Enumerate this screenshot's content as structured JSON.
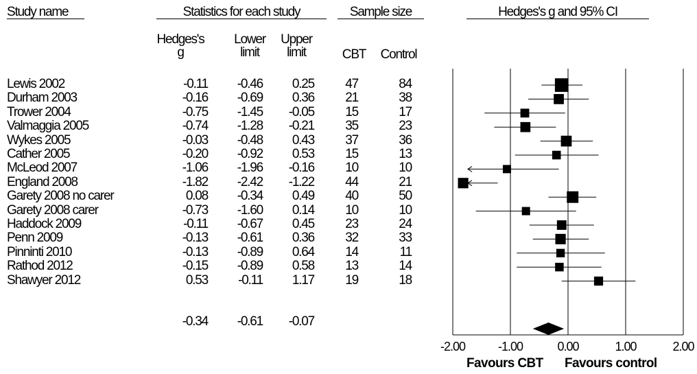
{
  "headers": {
    "study_name": "Study name",
    "stats_group": "Statistics for each study",
    "sample_group": "Sample size",
    "plot_group": "Hedges's g and 95% CI",
    "hedges_line1": "Hedges's",
    "hedges_line2": "g",
    "lower_line1": "Lower",
    "lower_line2": "limit",
    "upper_line1": "Upper",
    "upper_line2": "limit",
    "cbt": "CBT",
    "control": "Control"
  },
  "footer": {
    "favours_left": "Favours CBT",
    "favours_right": "Favours control"
  },
  "summary": {
    "g": "-0.34",
    "lower": "-0.61",
    "upper": "-0.07"
  },
  "chart_data": {
    "type": "forest",
    "xlim": [
      -2.0,
      2.0
    ],
    "ticks": [
      -2.0,
      -1.0,
      0.0,
      1.0,
      2.0
    ],
    "tick_labels": [
      "-2.00",
      "-1.00",
      "0.00",
      "1.00",
      "2.00"
    ],
    "studies": [
      {
        "name": "Lewis 2002",
        "g": "-0.11",
        "lower": "-0.46",
        "upper": "0.25",
        "cbt": "47",
        "control": "84"
      },
      {
        "name": "Durham 2003",
        "g": "-0.16",
        "lower": "-0.69",
        "upper": "0.36",
        "cbt": "21",
        "control": "38"
      },
      {
        "name": "Trower 2004",
        "g": "-0.75",
        "lower": "-1.45",
        "upper": "-0.05",
        "cbt": "15",
        "control": "17"
      },
      {
        "name": "Valmaggia 2005",
        "g": "-0.74",
        "lower": "-1.28",
        "upper": "-0.21",
        "cbt": "35",
        "control": "23"
      },
      {
        "name": "Wykes 2005",
        "g": "-0.03",
        "lower": "-0.48",
        "upper": "0.43",
        "cbt": "37",
        "control": "36"
      },
      {
        "name": "Cather 2005",
        "g": "-0.20",
        "lower": "-0.92",
        "upper": "0.53",
        "cbt": "15",
        "control": "13"
      },
      {
        "name": "McLeod 2007",
        "g": "-1.06",
        "lower": "-1.96",
        "upper": "-0.16",
        "cbt": "10",
        "control": "10"
      },
      {
        "name": "England 2008",
        "g": "-1.82",
        "lower": "-2.42",
        "upper": "-1.22",
        "cbt": "44",
        "control": "21"
      },
      {
        "name": "Garety 2008 no carer",
        "g": "0.08",
        "lower": "-0.34",
        "upper": "0.49",
        "cbt": "40",
        "control": "50"
      },
      {
        "name": "Garety 2008 carer",
        "g": "-0.73",
        "lower": "-1.60",
        "upper": "0.14",
        "cbt": "10",
        "control": "10"
      },
      {
        "name": "Haddock 2009",
        "g": "-0.11",
        "lower": "-0.67",
        "upper": "0.45",
        "cbt": "23",
        "control": "24"
      },
      {
        "name": "Penn 2009",
        "g": "-0.13",
        "lower": "-0.61",
        "upper": "0.36",
        "cbt": "32",
        "control": "33"
      },
      {
        "name": "Pinninti 2010",
        "g": "-0.13",
        "lower": "-0.89",
        "upper": "0.64",
        "cbt": "14",
        "control": "11"
      },
      {
        "name": "Rathod 2012",
        "g": "-0.15",
        "lower": "-0.89",
        "upper": "0.58",
        "cbt": "13",
        "control": "14"
      },
      {
        "name": "Shawyer 2012",
        "g": "0.53",
        "lower": "-0.11",
        "upper": "1.17",
        "cbt": "19",
        "control": "18"
      }
    ]
  }
}
